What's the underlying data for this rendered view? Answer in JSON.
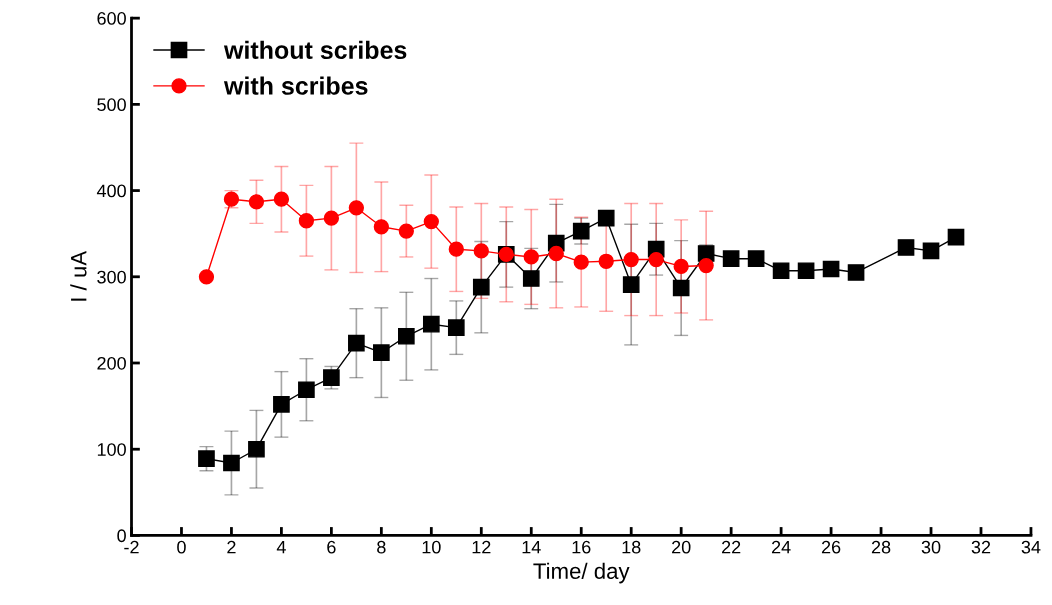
{
  "chart_data": {
    "type": "line",
    "xlabel": "Time/ day",
    "ylabel": "I / uA",
    "xlim": [
      -2,
      34
    ],
    "xticks": [
      -2,
      0,
      2,
      4,
      6,
      8,
      10,
      12,
      14,
      16,
      18,
      20,
      22,
      24,
      26,
      28,
      30,
      32,
      34
    ],
    "ylim": [
      0,
      600
    ],
    "yticks": [
      0,
      100,
      200,
      300,
      400,
      500,
      600
    ],
    "grid": false,
    "legend": "top left",
    "line_style": "solid",
    "series": [
      {
        "name": "without scribes",
        "color": "#000000",
        "marker": "square",
        "x": [
          1,
          2,
          3,
          4,
          5,
          6,
          7,
          8,
          9,
          10,
          11,
          12,
          13,
          14,
          15,
          16,
          17,
          18,
          19,
          20,
          21,
          22,
          23,
          24,
          25,
          26,
          27,
          29,
          30,
          31
        ],
        "values": [
          89,
          84,
          100,
          152,
          169,
          183,
          223,
          212,
          231,
          245,
          241,
          288,
          326,
          298,
          339,
          353,
          368,
          291,
          332,
          287,
          327,
          321,
          321,
          307,
          307,
          309,
          305,
          334,
          330,
          346
        ],
        "errors": [
          14,
          37,
          45,
          38,
          36,
          13,
          40,
          52,
          51,
          53,
          31,
          53,
          38,
          35,
          45,
          15,
          null,
          70,
          30,
          55,
          10,
          null,
          null,
          8,
          null,
          null,
          null,
          null,
          null,
          null
        ]
      },
      {
        "name": "with scribes",
        "color": "#ff0000",
        "marker": "circle",
        "x": [
          1,
          2,
          3,
          4,
          5,
          6,
          7,
          8,
          9,
          10,
          11,
          12,
          13,
          14,
          15,
          16,
          17,
          18,
          19,
          20,
          21
        ],
        "values": [
          300,
          390,
          387,
          390,
          365,
          368,
          380,
          358,
          353,
          364,
          332,
          330,
          326,
          323,
          327,
          317,
          318,
          320,
          320,
          312,
          313
        ],
        "errors": [
          null,
          10,
          25,
          38,
          41,
          60,
          75,
          52,
          30,
          54,
          49,
          55,
          55,
          55,
          63,
          52,
          58,
          65,
          65,
          54,
          63
        ]
      }
    ]
  }
}
